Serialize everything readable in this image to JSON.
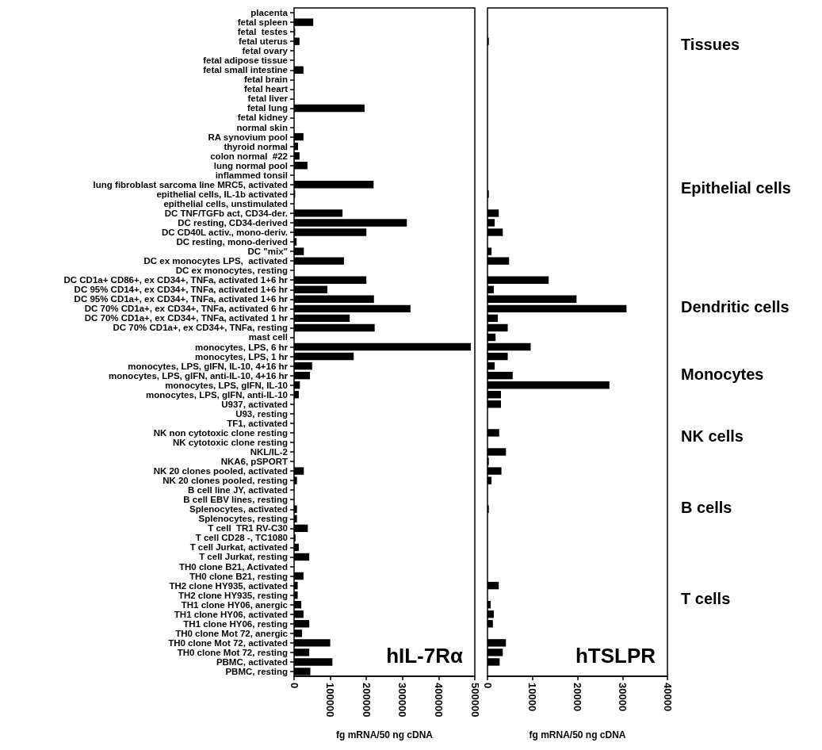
{
  "chart_data": [
    {
      "type": "bar",
      "orientation": "horizontal",
      "title": "hIL-7Rα",
      "xlabel": "fg mRNA/50 ng cDNA",
      "categories": [
        "placenta",
        "fetal spleen",
        "fetal  testes",
        "fetal uterus",
        "fetal ovary",
        "fetal adipose tissue",
        "fetal small intestine",
        "fetal brain",
        "fetal heart",
        "fetal liver",
        "fetal lung",
        "fetal kidney",
        "normal skin",
        "RA synovium pool",
        "thyroid normal",
        "colon normal  #22",
        "lung normal pool",
        "inflammed tonsil",
        "lung fibroblast sarcoma line MRC5, activated",
        "epithelial cells, IL-1b activated",
        "epithelial cells, unstimulated",
        "DC TNF/TGFb act, CD34-der.",
        "DC resting, CD34-derived",
        "DC CD40L activ., mono-deriv.",
        "DC resting, mono-derived",
        "DC \"mix\"",
        "DC ex monocytes LPS,  activated",
        "DC ex monocytes, resting",
        "DC CD1a+ CD86+, ex CD34+, TNFa, activated 1+6 hr",
        "DC 95% CD14+, ex CD34+, TNFa, activated 1+6 hr",
        "DC 95% CD1a+, ex CD34+, TNFa, activated 1+6 hr",
        "DC 70% CD1a+, ex CD34+, TNFa, activated 6 hr",
        "DC 70% CD1a+, ex CD34+, TNFa, activated 1 hr",
        "DC 70% CD1a+, ex CD34+, TNFa, resting",
        "mast cell",
        "monocytes, LPS, 6 hr",
        "monocytes, LPS, 1 hr",
        "monocytes, LPS, gIFN, IL-10, 4+16 hr",
        "monocytes, LPS, gIFN, anti-IL-10, 4+16 hr",
        "monocytes, LPS, gIFN, IL-10",
        "monocytes, LPS, gIFN, anti-IL-10",
        "U937, activated",
        "U93, resting",
        "TF1, activated",
        "NK non cytotoxic clone resting",
        "NK cytotoxic clone resting",
        "NKL/IL-2",
        "NKA6, pSPORT",
        "NK 20 clones pooled, activated",
        "NK 20 clones pooled, resting",
        "B cell line JY, activated",
        "B cell EBV lines, resting",
        "Splenocytes, activated",
        "Splenocytes, resting",
        "T cell  TR1 RV-C30",
        "T cell CD28 -, TC1080",
        "T cell Jurkat, activated",
        "T cell Jurkat, resting",
        "TH0 clone B21, Activated",
        "TH0 clone B21, resting",
        "TH2 clone HY935, activated",
        "TH2 clone HY935, resting",
        "TH1 clone HY06, anergic",
        "TH1 clone HY06, activated",
        "TH1 clone HY06, resting",
        "TH0 clone Mot 72, anergic",
        "TH0 clone Mot 72, activated",
        "TH0 clone Mot 72, resting",
        "PBMC, activated",
        "PBMC, resting"
      ],
      "series": [
        {
          "color": "#000000",
          "values": [
            0,
            53000,
            3000,
            15000,
            0,
            0,
            26000,
            0,
            0,
            0,
            195000,
            0,
            0,
            26000,
            11000,
            15000,
            37000,
            0,
            220000,
            3000,
            0,
            134000,
            312000,
            200000,
            7000,
            27000,
            138000,
            0,
            200000,
            92000,
            221000,
            322000,
            154000,
            223000,
            0,
            489000,
            165000,
            50000,
            44000,
            16000,
            13000,
            0,
            0,
            0,
            0,
            0,
            0,
            0,
            27000,
            8000,
            0,
            0,
            8000,
            8000,
            38000,
            4000,
            13000,
            42000,
            0,
            26000,
            10000,
            10000,
            20000,
            26000,
            42000,
            22000,
            100000,
            42000,
            106000,
            45000
          ]
        }
      ],
      "xlim": [
        0,
        500000
      ],
      "xticks": [
        0,
        100000,
        200000,
        300000,
        400000,
        500000
      ]
    },
    {
      "type": "bar",
      "orientation": "horizontal",
      "title": "hTSLPR",
      "xlabel": "fg mRNA/50 ng cDNA",
      "tick_labels": "x",
      "categories": [
        null,
        null,
        null,
        null,
        null,
        null,
        null,
        null,
        null,
        null,
        null,
        null,
        null,
        null,
        null,
        null,
        null,
        null,
        null,
        null,
        null,
        null,
        null,
        null,
        null,
        null,
        null,
        null,
        null,
        null,
        null,
        null,
        null,
        null,
        null,
        null,
        null,
        null,
        null,
        null,
        null,
        null,
        null,
        null,
        null,
        null,
        null,
        null,
        null,
        null,
        null,
        null,
        null,
        null,
        null,
        null,
        null,
        null,
        null,
        null,
        null,
        null,
        null,
        null,
        null,
        null,
        null,
        null,
        null,
        null
      ],
      "series": [
        {
          "color": "#000000",
          "values": [
            0,
            0,
            0,
            300,
            0,
            0,
            0,
            0,
            0,
            0,
            0,
            0,
            0,
            0,
            0,
            0,
            0,
            0,
            0,
            300,
            0,
            2500,
            1600,
            3400,
            0,
            900,
            4800,
            0,
            13600,
            1400,
            19800,
            30900,
            2300,
            4500,
            1800,
            9600,
            4500,
            1600,
            5600,
            27100,
            3000,
            3000,
            0,
            0,
            2600,
            0,
            4100,
            300,
            3100,
            900,
            0,
            0,
            300,
            0,
            0,
            0,
            0,
            0,
            0,
            0,
            2500,
            0,
            700,
            1400,
            1200,
            0,
            4100,
            3400,
            2700,
            0
          ]
        }
      ],
      "xlim": [
        0,
        40000
      ],
      "xticks": [
        0,
        10000,
        20000,
        30000,
        40000
      ],
      "annotations": [
        "Tissues",
        "Epithelial cells",
        "Dendritic cells",
        "Monocytes",
        "NK cells",
        "B cells",
        "T cells"
      ]
    }
  ]
}
